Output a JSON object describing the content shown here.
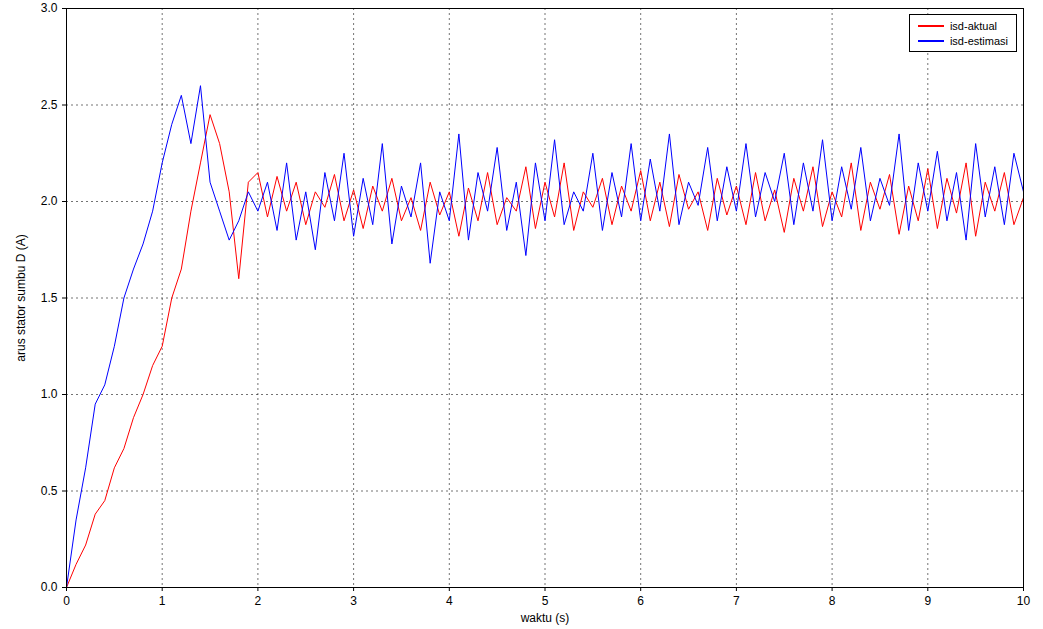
{
  "chart_data": {
    "type": "line",
    "x_label": "waktu (s)",
    "y_label": "arus stator sumbu D (A)",
    "x": [
      0,
      0.1,
      0.2,
      0.3,
      0.4,
      0.5,
      0.6,
      0.7,
      0.8,
      0.9,
      1,
      1.1,
      1.2,
      1.3,
      1.4,
      1.5,
      1.6,
      1.7,
      1.8,
      1.9,
      2,
      2.1,
      2.2,
      2.3,
      2.4,
      2.5,
      2.6,
      2.7,
      2.8,
      2.9,
      3,
      3.1,
      3.2,
      3.3,
      3.4,
      3.5,
      3.6,
      3.7,
      3.8,
      3.9,
      4,
      4.1,
      4.2,
      4.3,
      4.4,
      4.5,
      4.6,
      4.7,
      4.8,
      4.9,
      5,
      5.1,
      5.2,
      5.3,
      5.4,
      5.5,
      5.6,
      5.7,
      5.8,
      5.9,
      6,
      6.1,
      6.2,
      6.3,
      6.4,
      6.5,
      6.6,
      6.7,
      6.8,
      6.9,
      7,
      7.1,
      7.2,
      7.3,
      7.4,
      7.5,
      7.6,
      7.7,
      7.8,
      7.9,
      8,
      8.1,
      8.2,
      8.3,
      8.4,
      8.5,
      8.6,
      8.7,
      8.8,
      8.9,
      9,
      9.1,
      9.2,
      9.3,
      9.4,
      9.5,
      9.6,
      9.7,
      9.8,
      9.9,
      10
    ],
    "series": [
      {
        "name": "isd-aktual",
        "color": "#ff0000",
        "values": [
          0,
          0.12,
          0.22,
          0.38,
          0.45,
          0.62,
          0.72,
          0.88,
          1.0,
          1.15,
          1.25,
          1.5,
          1.65,
          1.95,
          2.2,
          2.45,
          2.3,
          2.05,
          1.6,
          2.1,
          2.15,
          1.92,
          2.13,
          1.95,
          2.1,
          1.88,
          2.05,
          1.97,
          2.14,
          1.9,
          2.06,
          1.86,
          2.08,
          1.95,
          2.12,
          1.9,
          2.02,
          1.85,
          2.1,
          1.93,
          2.05,
          1.82,
          2.07,
          1.9,
          2.15,
          1.88,
          2.02,
          1.95,
          2.18,
          1.86,
          2.1,
          1.92,
          2.2,
          1.85,
          2.05,
          1.97,
          2.12,
          1.88,
          2.08,
          1.95,
          2.16,
          1.9,
          2.1,
          1.87,
          2.14,
          1.96,
          2.05,
          1.85,
          2.12,
          1.93,
          2.08,
          1.88,
          2.15,
          1.9,
          2.06,
          1.84,
          2.12,
          1.95,
          2.18,
          1.87,
          2.05,
          1.92,
          2.2,
          1.85,
          2.1,
          1.96,
          2.14,
          1.83,
          2.08,
          1.9,
          2.17,
          1.86,
          2.12,
          1.94,
          2.2,
          1.82,
          2.1,
          1.95,
          2.15,
          1.88,
          2.02
        ]
      },
      {
        "name": "isd-estimasi",
        "color": "#0000ff",
        "values": [
          0,
          0.35,
          0.62,
          0.95,
          1.05,
          1.25,
          1.5,
          1.65,
          1.78,
          1.95,
          2.2,
          2.4,
          2.55,
          2.3,
          2.6,
          2.1,
          1.95,
          1.8,
          1.9,
          2.05,
          1.95,
          2.1,
          1.85,
          2.2,
          1.8,
          2.05,
          1.75,
          2.15,
          1.9,
          2.25,
          1.82,
          2.12,
          1.88,
          2.3,
          1.78,
          2.08,
          1.92,
          2.2,
          1.68,
          2.05,
          1.9,
          2.35,
          1.8,
          2.15,
          1.95,
          2.28,
          1.85,
          2.1,
          1.72,
          2.2,
          1.9,
          2.32,
          1.88,
          2.05,
          1.95,
          2.25,
          1.85,
          2.15,
          1.92,
          2.3,
          1.9,
          2.22,
          1.95,
          2.35,
          1.88,
          2.1,
          1.98,
          2.28,
          1.9,
          2.18,
          1.95,
          2.3,
          1.92,
          2.15,
          2.0,
          2.25,
          1.88,
          2.2,
          1.95,
          2.32,
          1.9,
          2.18,
          1.96,
          2.28,
          1.9,
          2.12,
          1.98,
          2.35,
          1.85,
          2.2,
          1.95,
          2.26,
          1.9,
          2.15,
          1.8,
          2.3,
          1.92,
          2.18,
          1.88,
          2.25,
          2.05
        ]
      }
    ],
    "xlim": [
      0,
      10
    ],
    "xticks": [
      0,
      1,
      2,
      3,
      4,
      5,
      6,
      7,
      8,
      9,
      10
    ],
    "ylim": [
      0,
      3
    ],
    "yticks": [
      0,
      0.5,
      1,
      1.5,
      2,
      2.5,
      3
    ],
    "grid": true,
    "legend": "top-right"
  }
}
